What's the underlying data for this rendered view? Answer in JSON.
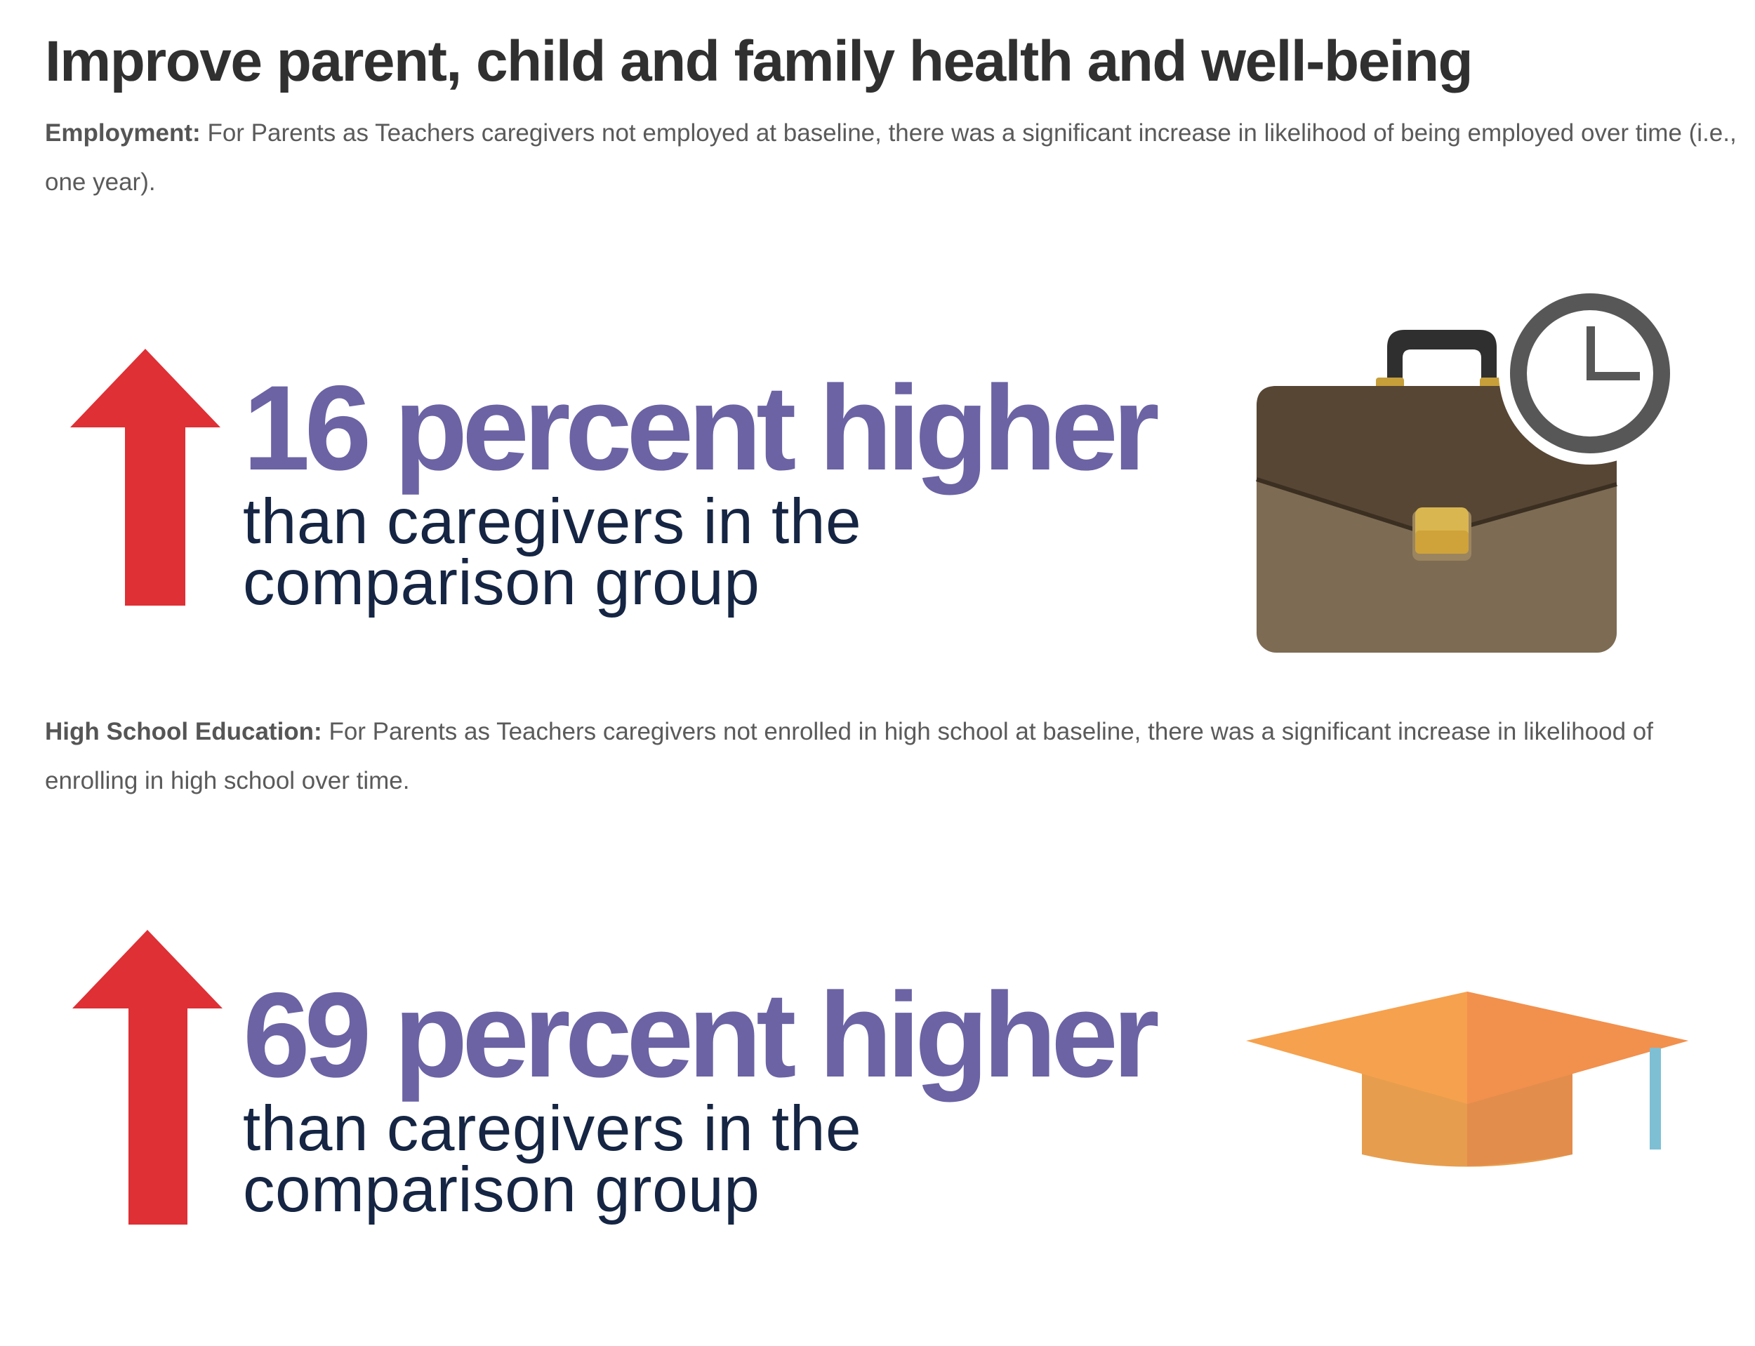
{
  "title": "Improve parent, child and family health and well-being",
  "employment": {
    "label": "Employment:",
    "text": "For Parents as Teachers caregivers not employed at baseline, there was a significant increase in likelihood of being employed over time (i.e., one year).",
    "stat": "16 percent higher",
    "subtext_line1": "than caregivers in the",
    "subtext_line2": "comparison group",
    "icon": "briefcase-icon",
    "secondary_icon": "clock-icon"
  },
  "high_school": {
    "label": "High School Education:",
    "text": "For Parents as Teachers caregivers not enrolled in high school at baseline, there was a significant increase in likelihood of enrolling in high school over time.",
    "stat": "69 percent higher",
    "subtext_line1": "than caregivers in the",
    "subtext_line2": "comparison group",
    "icon": "graduation-cap-icon"
  },
  "colors": {
    "title": "#303030",
    "body": "#5a5a5a",
    "stat": "#6b63a4",
    "subtext": "#152543",
    "arrow": "#de3035",
    "briefcase_top": "#574634",
    "briefcase_bottom": "#7d6b53",
    "clock": "#575757",
    "cap": "#f29a4c",
    "tassel": "#7ebfd4"
  }
}
